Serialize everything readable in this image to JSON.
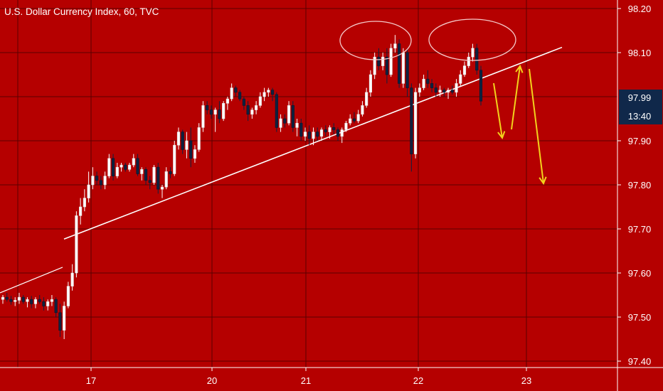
{
  "header": {
    "title": "U.S. Dollar Currency Index, 60, TVC"
  },
  "chart_data": {
    "type": "candlestick",
    "title": "U.S. Dollar Currency Index, 60, TVC",
    "x_ticks": [
      "17",
      "20",
      "21",
      "22",
      "23"
    ],
    "y_ticks": [
      "98.20",
      "98.10",
      "97.90",
      "97.80",
      "97.70",
      "97.60",
      "97.50",
      "97.40"
    ],
    "ylim": [
      97.37,
      98.22
    ],
    "last_price_label": "97.99",
    "countdown_label": "13:40",
    "grid": true,
    "colors": {
      "background": "#b50000",
      "up_candle": "#ffffff",
      "down_candle": "#0d2240",
      "trendline": "#ffffff",
      "projection_arrows": "#f2d21c",
      "price_badge": "#10284a",
      "grid": "#5a0000"
    },
    "candles": [
      {
        "o": 97.54,
        "h": 97.55,
        "l": 97.53,
        "c": 97.545
      },
      {
        "o": 97.545,
        "h": 97.555,
        "l": 97.535,
        "c": 97.54
      },
      {
        "o": 97.54,
        "h": 97.548,
        "l": 97.528,
        "c": 97.535
      },
      {
        "o": 97.535,
        "h": 97.545,
        "l": 97.525,
        "c": 97.538
      },
      {
        "o": 97.538,
        "h": 97.555,
        "l": 97.53,
        "c": 97.545
      },
      {
        "o": 97.545,
        "h": 97.55,
        "l": 97.53,
        "c": 97.535
      },
      {
        "o": 97.535,
        "h": 97.545,
        "l": 97.522,
        "c": 97.54
      },
      {
        "o": 97.54,
        "h": 97.548,
        "l": 97.52,
        "c": 97.53
      },
      {
        "o": 97.53,
        "h": 97.545,
        "l": 97.52,
        "c": 97.54
      },
      {
        "o": 97.54,
        "h": 97.55,
        "l": 97.53,
        "c": 97.535
      },
      {
        "o": 97.535,
        "h": 97.545,
        "l": 97.515,
        "c": 97.525
      },
      {
        "o": 97.525,
        "h": 97.54,
        "l": 97.515,
        "c": 97.535
      },
      {
        "o": 97.535,
        "h": 97.55,
        "l": 97.525,
        "c": 97.54
      },
      {
        "o": 97.54,
        "h": 97.545,
        "l": 97.5,
        "c": 97.51
      },
      {
        "o": 97.51,
        "h": 97.53,
        "l": 97.455,
        "c": 97.47
      },
      {
        "o": 97.47,
        "h": 97.535,
        "l": 97.45,
        "c": 97.525
      },
      {
        "o": 97.525,
        "h": 97.58,
        "l": 97.52,
        "c": 97.57
      },
      {
        "o": 97.57,
        "h": 97.62,
        "l": 97.56,
        "c": 97.6
      },
      {
        "o": 97.6,
        "h": 97.74,
        "l": 97.59,
        "c": 97.73
      },
      {
        "o": 97.73,
        "h": 97.77,
        "l": 97.71,
        "c": 97.75
      },
      {
        "o": 97.75,
        "h": 97.79,
        "l": 97.74,
        "c": 97.77
      },
      {
        "o": 97.77,
        "h": 97.83,
        "l": 97.76,
        "c": 97.8
      },
      {
        "o": 97.8,
        "h": 97.84,
        "l": 97.79,
        "c": 97.82
      },
      {
        "o": 97.82,
        "h": 97.83,
        "l": 97.8,
        "c": 97.81
      },
      {
        "o": 97.81,
        "h": 97.82,
        "l": 97.79,
        "c": 97.8
      },
      {
        "o": 97.8,
        "h": 97.83,
        "l": 97.79,
        "c": 97.82
      },
      {
        "o": 97.82,
        "h": 97.87,
        "l": 97.815,
        "c": 97.86
      },
      {
        "o": 97.86,
        "h": 97.87,
        "l": 97.81,
        "c": 97.82
      },
      {
        "o": 97.82,
        "h": 97.85,
        "l": 97.815,
        "c": 97.84
      },
      {
        "o": 97.84,
        "h": 97.85,
        "l": 97.83,
        "c": 97.845
      },
      {
        "o": 97.845,
        "h": 97.85,
        "l": 97.83,
        "c": 97.835
      },
      {
        "o": 97.835,
        "h": 97.85,
        "l": 97.83,
        "c": 97.845
      },
      {
        "o": 97.845,
        "h": 97.87,
        "l": 97.84,
        "c": 97.86
      },
      {
        "o": 97.86,
        "h": 97.87,
        "l": 97.82,
        "c": 97.825
      },
      {
        "o": 97.825,
        "h": 97.84,
        "l": 97.81,
        "c": 97.835
      },
      {
        "o": 97.835,
        "h": 97.84,
        "l": 97.8,
        "c": 97.81
      },
      {
        "o": 97.81,
        "h": 97.82,
        "l": 97.79,
        "c": 97.805
      },
      {
        "o": 97.805,
        "h": 97.845,
        "l": 97.8,
        "c": 97.84
      },
      {
        "o": 97.84,
        "h": 97.85,
        "l": 97.78,
        "c": 97.79
      },
      {
        "o": 97.79,
        "h": 97.8,
        "l": 97.77,
        "c": 97.795
      },
      {
        "o": 97.795,
        "h": 97.84,
        "l": 97.79,
        "c": 97.83
      },
      {
        "o": 97.83,
        "h": 97.84,
        "l": 97.815,
        "c": 97.825
      },
      {
        "o": 97.825,
        "h": 97.9,
        "l": 97.82,
        "c": 97.89
      },
      {
        "o": 97.89,
        "h": 97.93,
        "l": 97.88,
        "c": 97.92
      },
      {
        "o": 97.92,
        "h": 97.925,
        "l": 97.87,
        "c": 97.88
      },
      {
        "o": 97.88,
        "h": 97.92,
        "l": 97.86,
        "c": 97.9
      },
      {
        "o": 97.9,
        "h": 97.93,
        "l": 97.84,
        "c": 97.86
      },
      {
        "o": 97.86,
        "h": 97.89,
        "l": 97.85,
        "c": 97.88
      },
      {
        "o": 97.88,
        "h": 97.94,
        "l": 97.875,
        "c": 97.93
      },
      {
        "o": 97.93,
        "h": 97.99,
        "l": 97.92,
        "c": 97.98
      },
      {
        "o": 97.98,
        "h": 97.99,
        "l": 97.96,
        "c": 97.97
      },
      {
        "o": 97.97,
        "h": 97.98,
        "l": 97.95,
        "c": 97.96
      },
      {
        "o": 97.96,
        "h": 97.975,
        "l": 97.92,
        "c": 97.97
      },
      {
        "o": 97.97,
        "h": 97.99,
        "l": 97.94,
        "c": 97.95
      },
      {
        "o": 97.95,
        "h": 97.99,
        "l": 97.945,
        "c": 97.985
      },
      {
        "o": 97.985,
        "h": 98.0,
        "l": 97.97,
        "c": 97.995
      },
      {
        "o": 97.995,
        "h": 98.03,
        "l": 97.99,
        "c": 98.02
      },
      {
        "o": 98.02,
        "h": 98.025,
        "l": 98.0,
        "c": 98.01
      },
      {
        "o": 98.01,
        "h": 98.015,
        "l": 97.99,
        "c": 97.995
      },
      {
        "o": 97.995,
        "h": 98.0,
        "l": 97.97,
        "c": 97.98
      },
      {
        "o": 97.98,
        "h": 97.99,
        "l": 97.945,
        "c": 97.96
      },
      {
        "o": 97.96,
        "h": 97.975,
        "l": 97.95,
        "c": 97.97
      },
      {
        "o": 97.97,
        "h": 97.99,
        "l": 97.96,
        "c": 97.98
      },
      {
        "o": 97.98,
        "h": 98.01,
        "l": 97.975,
        "c": 98.0
      },
      {
        "o": 98.0,
        "h": 98.02,
        "l": 97.99,
        "c": 98.01
      },
      {
        "o": 98.01,
        "h": 98.02,
        "l": 98.0,
        "c": 98.015
      },
      {
        "o": 98.015,
        "h": 98.02,
        "l": 97.99,
        "c": 98.005
      },
      {
        "o": 98.005,
        "h": 98.01,
        "l": 97.92,
        "c": 97.93
      },
      {
        "o": 97.93,
        "h": 97.96,
        "l": 97.92,
        "c": 97.95
      },
      {
        "o": 97.95,
        "h": 97.96,
        "l": 97.93,
        "c": 97.94
      },
      {
        "o": 97.94,
        "h": 97.99,
        "l": 97.935,
        "c": 97.98
      },
      {
        "o": 97.98,
        "h": 97.99,
        "l": 97.92,
        "c": 97.93
      },
      {
        "o": 97.93,
        "h": 97.95,
        "l": 97.91,
        "c": 97.94
      },
      {
        "o": 97.94,
        "h": 97.95,
        "l": 97.9,
        "c": 97.91
      },
      {
        "o": 97.91,
        "h": 97.93,
        "l": 97.9,
        "c": 97.92
      },
      {
        "o": 97.92,
        "h": 97.935,
        "l": 97.89,
        "c": 97.905
      },
      {
        "o": 97.905,
        "h": 97.93,
        "l": 97.89,
        "c": 97.92
      },
      {
        "o": 97.92,
        "h": 97.93,
        "l": 97.9,
        "c": 97.91
      },
      {
        "o": 97.91,
        "h": 97.93,
        "l": 97.9,
        "c": 97.925
      },
      {
        "o": 97.925,
        "h": 97.935,
        "l": 97.91,
        "c": 97.92
      },
      {
        "o": 97.92,
        "h": 97.935,
        "l": 97.905,
        "c": 97.93
      },
      {
        "o": 97.93,
        "h": 97.94,
        "l": 97.915,
        "c": 97.925
      },
      {
        "o": 97.925,
        "h": 97.93,
        "l": 97.9,
        "c": 97.91
      },
      {
        "o": 97.91,
        "h": 97.93,
        "l": 97.895,
        "c": 97.925
      },
      {
        "o": 97.925,
        "h": 97.945,
        "l": 97.92,
        "c": 97.94
      },
      {
        "o": 97.94,
        "h": 97.96,
        "l": 97.935,
        "c": 97.95
      },
      {
        "o": 97.95,
        "h": 97.965,
        "l": 97.94,
        "c": 97.945
      },
      {
        "o": 97.945,
        "h": 97.97,
        "l": 97.94,
        "c": 97.96
      },
      {
        "o": 97.96,
        "h": 97.99,
        "l": 97.955,
        "c": 97.98
      },
      {
        "o": 97.98,
        "h": 98.02,
        "l": 97.975,
        "c": 98.01
      },
      {
        "o": 98.01,
        "h": 98.06,
        "l": 98.0,
        "c": 98.05
      },
      {
        "o": 98.05,
        "h": 98.1,
        "l": 98.04,
        "c": 98.09
      },
      {
        "o": 98.09,
        "h": 98.11,
        "l": 98.06,
        "c": 98.07
      },
      {
        "o": 98.07,
        "h": 98.1,
        "l": 98.06,
        "c": 98.09
      },
      {
        "o": 98.09,
        "h": 98.11,
        "l": 98.03,
        "c": 98.05
      },
      {
        "o": 98.05,
        "h": 98.12,
        "l": 98.045,
        "c": 98.11
      },
      {
        "o": 98.11,
        "h": 98.14,
        "l": 98.1,
        "c": 98.12
      },
      {
        "o": 98.12,
        "h": 98.13,
        "l": 98.02,
        "c": 98.03
      },
      {
        "o": 98.03,
        "h": 98.11,
        "l": 98.02,
        "c": 98.1
      },
      {
        "o": 98.1,
        "h": 98.11,
        "l": 98.0,
        "c": 98.02
      },
      {
        "o": 98.02,
        "h": 98.03,
        "l": 97.83,
        "c": 97.87
      },
      {
        "o": 97.87,
        "h": 98.02,
        "l": 97.86,
        "c": 98.01
      },
      {
        "o": 98.01,
        "h": 98.03,
        "l": 98.0,
        "c": 98.02
      },
      {
        "o": 98.02,
        "h": 98.05,
        "l": 98.015,
        "c": 98.04
      },
      {
        "o": 98.04,
        "h": 98.06,
        "l": 98.02,
        "c": 98.03
      },
      {
        "o": 98.03,
        "h": 98.04,
        "l": 98.01,
        "c": 98.02
      },
      {
        "o": 98.02,
        "h": 98.03,
        "l": 98.0,
        "c": 98.01
      },
      {
        "o": 98.01,
        "h": 98.025,
        "l": 98.0,
        "c": 98.015
      },
      {
        "o": 98.015,
        "h": 98.02,
        "l": 98.0,
        "c": 98.01
      },
      {
        "o": 98.01,
        "h": 98.02,
        "l": 97.995,
        "c": 98.015
      },
      {
        "o": 98.015,
        "h": 98.025,
        "l": 98.005,
        "c": 98.01
      },
      {
        "o": 98.01,
        "h": 98.04,
        "l": 98.0,
        "c": 98.03
      },
      {
        "o": 98.03,
        "h": 98.06,
        "l": 98.025,
        "c": 98.05
      },
      {
        "o": 98.05,
        "h": 98.08,
        "l": 98.045,
        "c": 98.07
      },
      {
        "o": 98.07,
        "h": 98.1,
        "l": 98.065,
        "c": 98.09
      },
      {
        "o": 98.09,
        "h": 98.12,
        "l": 98.08,
        "c": 98.11
      },
      {
        "o": 98.11,
        "h": 98.12,
        "l": 98.05,
        "c": 98.06
      },
      {
        "o": 98.06,
        "h": 98.07,
        "l": 97.98,
        "c": 97.99
      }
    ],
    "trendline": [
      [
        17.0,
        97.677
      ],
      [
        23.6,
        98.112
      ]
    ],
    "early_trendline": [
      [
        16.0,
        97.555
      ],
      [
        17.1,
        97.613
      ]
    ],
    "highlight_ellipses": [
      {
        "x_center": 21.72,
        "y_center": 98.125,
        "x_radius": 0.36,
        "y_radius": 0.035
      },
      {
        "x_center": 22.58,
        "y_center": 98.125,
        "x_radius": 0.45,
        "y_radius": 0.045
      }
    ],
    "projection_arrows": [
      {
        "from": [
          22.82,
          97.98
        ],
        "to": [
          22.93,
          97.895
        ]
      },
      {
        "from": [
          23.0,
          97.91
        ],
        "to": [
          23.15,
          98.075
        ]
      },
      {
        "from": [
          23.25,
          98.065
        ],
        "to": [
          23.44,
          97.79
        ]
      }
    ]
  }
}
